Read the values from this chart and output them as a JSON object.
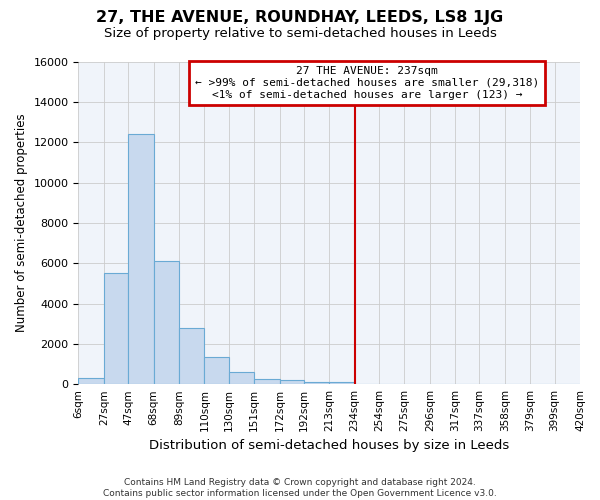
{
  "title": "27, THE AVENUE, ROUNDHAY, LEEDS, LS8 1JG",
  "subtitle": "Size of property relative to semi-detached houses in Leeds",
  "xlabel": "Distribution of semi-detached houses by size in Leeds",
  "ylabel": "Number of semi-detached properties",
  "bin_edges": [
    6,
    27,
    47,
    68,
    89,
    110,
    130,
    151,
    172,
    192,
    213,
    234,
    254,
    275,
    296,
    317,
    337,
    358,
    379,
    399,
    420
  ],
  "bin_labels": [
    "6sqm",
    "27sqm",
    "47sqm",
    "68sqm",
    "89sqm",
    "110sqm",
    "130sqm",
    "151sqm",
    "172sqm",
    "192sqm",
    "213sqm",
    "234sqm",
    "254sqm",
    "275sqm",
    "296sqm",
    "317sqm",
    "337sqm",
    "358sqm",
    "379sqm",
    "399sqm",
    "420sqm"
  ],
  "bar_heights": [
    300,
    5500,
    12400,
    6100,
    2800,
    1350,
    600,
    250,
    200,
    130,
    100,
    0,
    0,
    0,
    0,
    0,
    0,
    0,
    0,
    0
  ],
  "bar_color": "#c8d9ee",
  "bar_edge_color": "#6aaad4",
  "vline_x": 234,
  "vline_color": "#cc0000",
  "annotation_title": "27 THE AVENUE: 237sqm",
  "annotation_line1": "← >99% of semi-detached houses are smaller (29,318)",
  "annotation_line2": "<1% of semi-detached houses are larger (123) →",
  "ylim": [
    0,
    16000
  ],
  "yticks": [
    0,
    2000,
    4000,
    6000,
    8000,
    10000,
    12000,
    14000,
    16000
  ],
  "grid_color": "#cccccc",
  "plot_bg_color": "#f0f4fa",
  "footer_line1": "Contains HM Land Registry data © Crown copyright and database right 2024.",
  "footer_line2": "Contains public sector information licensed under the Open Government Licence v3.0."
}
